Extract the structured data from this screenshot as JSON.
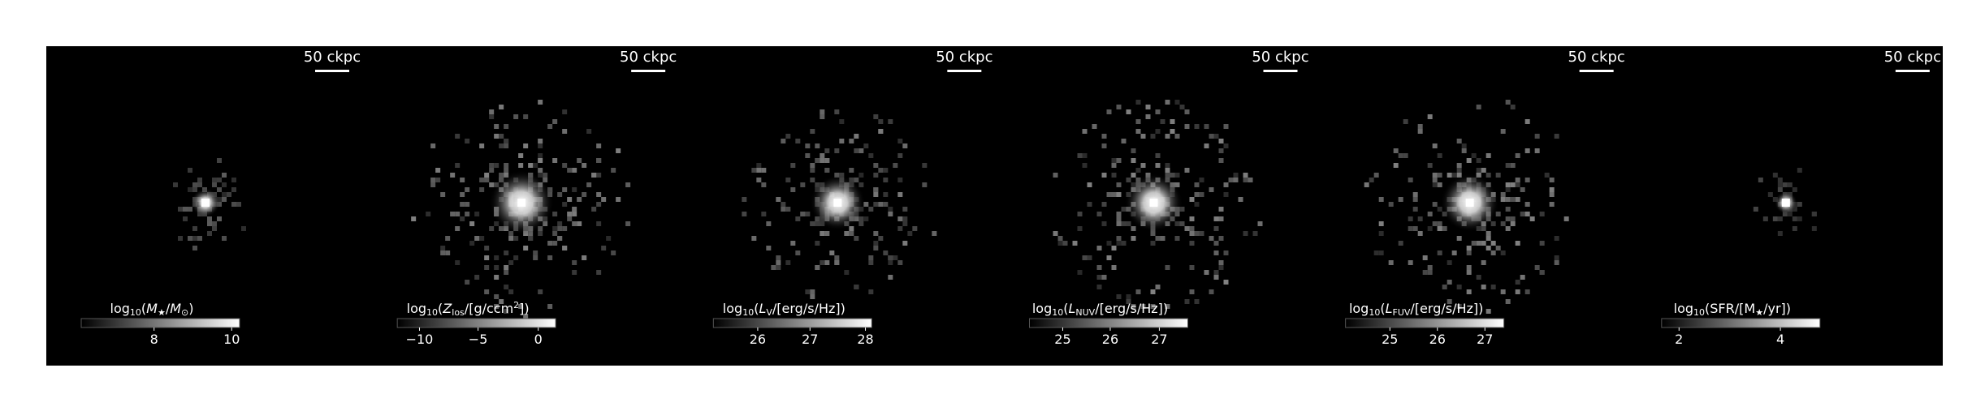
{
  "panels": [
    {
      "scalebar": "50 ckpc",
      "colorbar": {
        "label_parts": [
          [
            "log",
            "n"
          ],
          [
            "10",
            "sub"
          ],
          [
            "(",
            "n"
          ],
          [
            "M",
            "i"
          ],
          [
            "★",
            "sub"
          ],
          [
            "/",
            "n"
          ],
          [
            "M",
            "i"
          ],
          [
            "⊙",
            "sub"
          ],
          [
            ")",
            "n"
          ]
        ],
        "ticks": [
          {
            "label": "8",
            "frac": 0.46
          },
          {
            "label": "10",
            "frac": 0.95
          }
        ]
      },
      "galaxy": {
        "core": 0.95,
        "halo": 0.35,
        "pixel_scatter": 0.15,
        "core_radius_px": 18
      }
    },
    {
      "scalebar": "50 ckpc",
      "colorbar": {
        "label_parts": [
          [
            "log",
            "n"
          ],
          [
            "10",
            "sub"
          ],
          [
            "(",
            "n"
          ],
          [
            "Z",
            "i"
          ],
          [
            "los",
            "sub"
          ],
          [
            "/[g/ccm",
            "n"
          ],
          [
            "2",
            "sup"
          ],
          [
            "])",
            "n"
          ]
        ],
        "ticks": [
          {
            "label": "−10",
            "frac": 0.14
          },
          {
            "label": "−5",
            "frac": 0.51
          },
          {
            "label": "0",
            "frac": 0.89
          }
        ]
      },
      "galaxy": {
        "core": 0.95,
        "halo": 0.6,
        "pixel_scatter": 0.9,
        "core_radius_px": 40
      }
    },
    {
      "scalebar": "50 ckpc",
      "colorbar": {
        "label_parts": [
          [
            "log",
            "n"
          ],
          [
            "10",
            "sub"
          ],
          [
            "(",
            "n"
          ],
          [
            "L",
            "i"
          ],
          [
            "V",
            "sub"
          ],
          [
            "/[erg/s/Hz])",
            "n"
          ]
        ],
        "ticks": [
          {
            "label": "26",
            "frac": 0.28
          },
          {
            "label": "27",
            "frac": 0.61
          },
          {
            "label": "28",
            "frac": 0.96
          }
        ]
      },
      "galaxy": {
        "core": 1.0,
        "halo": 0.55,
        "pixel_scatter": 0.75,
        "core_radius_px": 34
      }
    },
    {
      "scalebar": "50 ckpc",
      "colorbar": {
        "label_parts": [
          [
            "log",
            "n"
          ],
          [
            "10",
            "sub"
          ],
          [
            "(",
            "n"
          ],
          [
            "L",
            "i"
          ],
          [
            "NUV",
            "sub"
          ],
          [
            "/[erg/s/Hz])",
            "n"
          ]
        ],
        "ticks": [
          {
            "label": "25",
            "frac": 0.21
          },
          {
            "label": "26",
            "frac": 0.51
          },
          {
            "label": "27",
            "frac": 0.82
          }
        ]
      },
      "galaxy": {
        "core": 1.0,
        "halo": 0.6,
        "pixel_scatter": 0.85,
        "core_radius_px": 36
      }
    },
    {
      "scalebar": "50 ckpc",
      "colorbar": {
        "label_parts": [
          [
            "log",
            "n"
          ],
          [
            "10",
            "sub"
          ],
          [
            "(",
            "n"
          ],
          [
            "L",
            "i"
          ],
          [
            "FUV",
            "sub"
          ],
          [
            "/[erg/s/Hz])",
            "n"
          ]
        ],
        "ticks": [
          {
            "label": "25",
            "frac": 0.28
          },
          {
            "label": "26",
            "frac": 0.58
          },
          {
            "label": "27",
            "frac": 0.88
          }
        ]
      },
      "galaxy": {
        "core": 1.0,
        "halo": 0.6,
        "pixel_scatter": 0.85,
        "core_radius_px": 36
      }
    },
    {
      "scalebar": "50 ckpc",
      "colorbar": {
        "label_parts": [
          [
            "log",
            "n"
          ],
          [
            "10",
            "sub"
          ],
          [
            "(SFR/[",
            "n"
          ],
          [
            "M",
            "n"
          ],
          [
            "★",
            "sub"
          ],
          [
            "/yr])",
            "n"
          ]
        ],
        "ticks": [
          {
            "label": "2",
            "frac": 0.11
          },
          {
            "label": "4",
            "frac": 0.75
          }
        ]
      },
      "galaxy": {
        "core": 1.0,
        "halo": 0.2,
        "pixel_scatter": 0.05,
        "core_radius_px": 14
      }
    }
  ],
  "colors": {
    "background": "#000000",
    "foreground": "#ffffff",
    "cmap_low": "#000000",
    "cmap_high": "#ffffff"
  }
}
